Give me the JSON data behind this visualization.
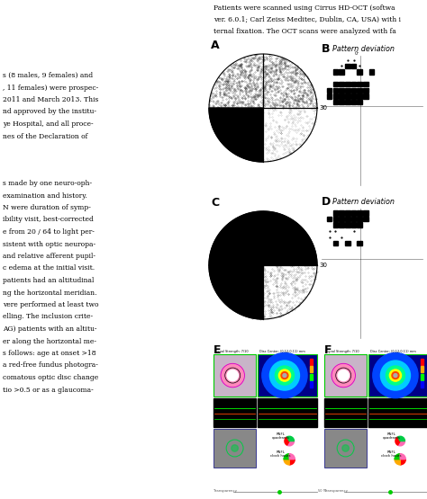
{
  "background_color": "#ffffff",
  "left_text_col1": [
    "s (8 males, 9 females) and",
    ", 11 females) were prospec-",
    "2011 and March 2013. This",
    "nd approved by the institu-",
    "ye Hospital, and all proce-",
    "nes of the Declaration of",
    "",
    "s made by one neuro-oph-",
    "examination and history.",
    "N were duration of symp-",
    "ibility visit, best-corrected",
    "e from 20 / 64 to light per-",
    "sistent with optic neuropa-",
    "and relative afferent pupil-",
    "c edema at the initial visit.",
    "patients had an altitudinal",
    "ng the horizontal meridian.",
    "vere performed at least two",
    "elling. The inclusion crite-",
    "AG) patients with an altitu-",
    "er along the horizontal me-",
    "s follows: age at onset >18",
    "a red-free fundus photogra-",
    "comatous optic disc change",
    "tio >0.5 or as a glaucoma-"
  ],
  "top_text_lines": [
    "Patients were scanned using Cirrus HD-OCT (softwa",
    "ver. 6.0.1; Carl Zeiss Meditec, Dublin, CA, USA) with i",
    "ternal fixation. The OCT scans were analyzed with fa"
  ],
  "label_A": "A",
  "label_B": "B",
  "label_C": "C",
  "label_D": "D",
  "label_E": "E",
  "label_F": "F",
  "pattern_deviation_text": "Pattern deviation"
}
